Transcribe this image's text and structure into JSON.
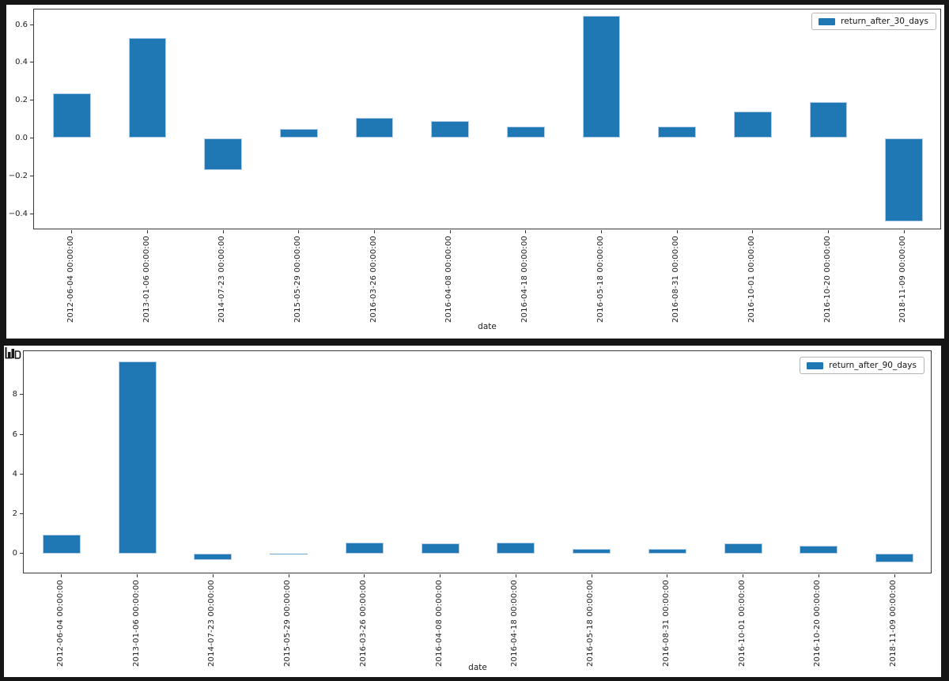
{
  "page": {
    "background_color": "#161616",
    "panel_background": "#ffffff"
  },
  "icons": {
    "bottom_panel_corner": "mini-bar-chart-icon",
    "legend_swatch": "blue-bar-swatch-icon"
  },
  "chart_data": [
    {
      "type": "bar",
      "title": "",
      "xlabel": "date",
      "ylabel": "",
      "legend_label": "return_after_30_days",
      "legend_position": "upper right",
      "bar_color": "#1f77b4",
      "grid": false,
      "x_tick_rotation": 90,
      "categories": [
        "2012-06-04 00:00:00",
        "2013-01-06 00:00:00",
        "2014-07-23 00:00:00",
        "2015-05-29 00:00:00",
        "2016-03-26 00:00:00",
        "2016-04-08 00:00:00",
        "2016-04-18 00:00:00",
        "2016-05-18 00:00:00",
        "2016-08-31 00:00:00",
        "2016-10-01 00:00:00",
        "2016-10-20 00:00:00",
        "2018-11-09 00:00:00"
      ],
      "values": [
        0.235,
        0.53,
        -0.17,
        0.05,
        0.105,
        0.09,
        0.06,
        0.645,
        0.06,
        0.14,
        0.19,
        -0.44
      ],
      "ylim": [
        -0.4875,
        0.68
      ],
      "ytick_values": [
        0.6,
        0.4,
        0.2,
        0.0,
        -0.2,
        -0.4
      ],
      "ytick_labels": [
        "0.6",
        "0.4",
        "0.2",
        "0.0",
        "−0.2",
        "−0.4"
      ]
    },
    {
      "type": "bar",
      "title": "",
      "xlabel": "date",
      "ylabel": "",
      "legend_label": "return_after_90_days",
      "legend_position": "upper right",
      "bar_color": "#1f77b4",
      "grid": false,
      "x_tick_rotation": 90,
      "categories": [
        "2012-06-04 00:00:00",
        "2013-01-06 00:00:00",
        "2014-07-23 00:00:00",
        "2015-05-29 00:00:00",
        "2016-03-26 00:00:00",
        "2016-04-08 00:00:00",
        "2016-04-18 00:00:00",
        "2016-05-18 00:00:00",
        "2016-08-31 00:00:00",
        "2016-10-01 00:00:00",
        "2016-10-20 00:00:00",
        "2018-11-09 00:00:00"
      ],
      "values": [
        0.95,
        9.65,
        -0.3,
        -0.02,
        0.55,
        0.5,
        0.55,
        0.25,
        0.25,
        0.5,
        0.4,
        -0.45
      ],
      "ylim": [
        -1.034,
        10.18
      ],
      "ytick_values": [
        8,
        6,
        4,
        2,
        0
      ],
      "ytick_labels": [
        "8",
        "6",
        "4",
        "2",
        "0"
      ]
    }
  ]
}
